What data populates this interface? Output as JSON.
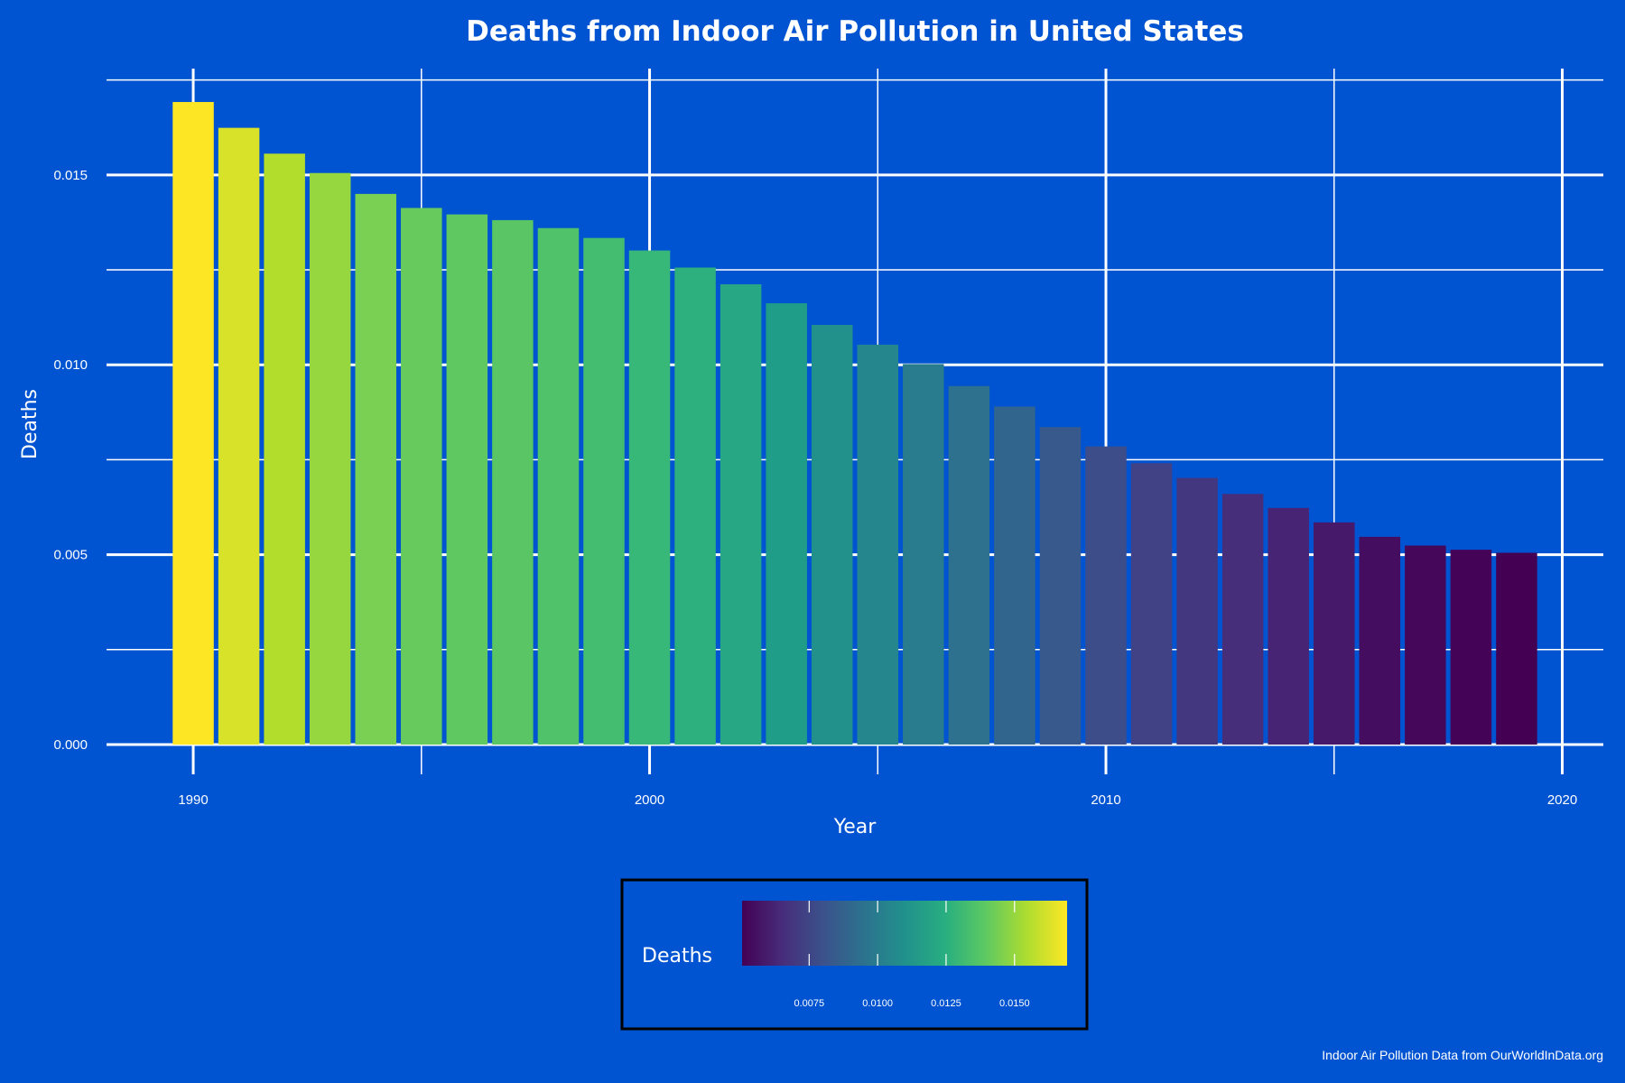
{
  "chart_data": {
    "type": "bar",
    "title": "Deaths from Indoor Air Pollution in United States",
    "xlabel": "Year",
    "ylabel": "Deaths",
    "x": [
      1990,
      1991,
      1992,
      1993,
      1994,
      1995,
      1996,
      1997,
      1998,
      1999,
      2000,
      2001,
      2002,
      2003,
      2004,
      2005,
      2006,
      2007,
      2008,
      2009,
      2010,
      2011,
      2012,
      2013,
      2014,
      2015,
      2016,
      2017,
      2018,
      2019
    ],
    "values": [
      0.01692,
      0.01624,
      0.01556,
      0.01505,
      0.0145,
      0.01413,
      0.01396,
      0.01381,
      0.0136,
      0.01334,
      0.01301,
      0.01256,
      0.01212,
      0.01162,
      0.01105,
      0.01053,
      0.01002,
      0.00944,
      0.0089,
      0.00836,
      0.00785,
      0.00741,
      0.00702,
      0.0066,
      0.00623,
      0.00585,
      0.00547,
      0.00524,
      0.00513,
      0.00505
    ],
    "xlim": [
      1988.1,
      2020.9
    ],
    "ylim": [
      0,
      0.0178
    ],
    "x_ticks": [
      1990,
      2000,
      2010,
      2020
    ],
    "x_tick_labels": [
      "1990",
      "2000",
      "2010",
      "2020"
    ],
    "y_ticks": [
      0,
      0.005,
      0.01,
      0.015
    ],
    "y_tick_labels": [
      "0.000",
      "0.005",
      "0.010",
      "0.015"
    ],
    "grid": true,
    "color_scale": "viridis",
    "color_range": [
      0.00505,
      0.01692
    ],
    "legend": {
      "title": "Deaths",
      "placement": "bottom",
      "ticks": [
        0.0075,
        0.01,
        0.0125,
        0.015
      ],
      "tick_labels": [
        "0.0075",
        "0.0100",
        "0.0125",
        "0.0150"
      ]
    },
    "caption": "Indoor Air Pollution Data from OurWorldInData.org",
    "colors": {
      "background": "#0054d1",
      "grid": "#ffffff",
      "text": "#ffffff",
      "legend_border": "#000000"
    }
  }
}
